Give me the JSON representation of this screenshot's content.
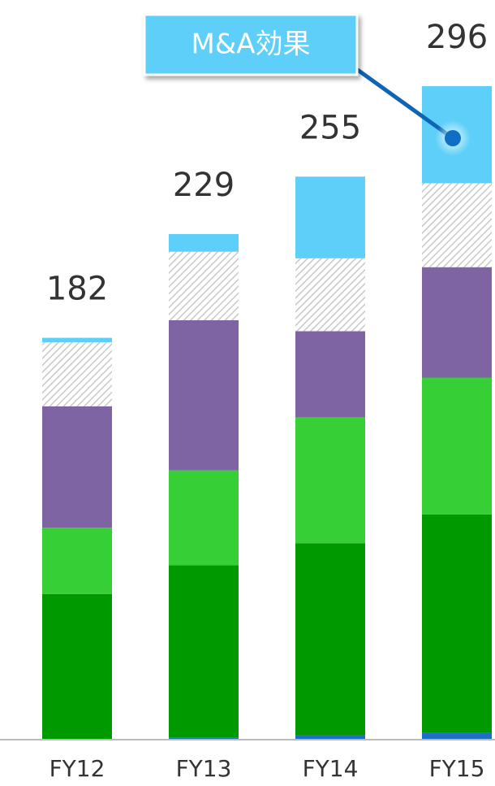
{
  "chart_data": {
    "type": "stacked_bar",
    "categories": [
      "FY12",
      "FY13",
      "FY14",
      "FY15"
    ],
    "totals": [
      182,
      229,
      255,
      296
    ],
    "series": [
      {
        "color": "#1f6fc6",
        "values": [
          0,
          1,
          2,
          3
        ]
      },
      {
        "color": "#009900",
        "values": [
          66,
          78,
          87,
          99
        ]
      },
      {
        "color": "#36cf36",
        "values": [
          30,
          43,
          57,
          62
        ]
      },
      {
        "color": "#7f64a3",
        "values": [
          55,
          68,
          39,
          50
        ]
      },
      {
        "color": "#c8c8c8",
        "pattern": "hatch",
        "values": [
          29,
          31,
          33,
          38
        ]
      },
      {
        "color": "#5dcff8",
        "values": [
          2,
          8,
          37,
          44
        ]
      }
    ],
    "annotation": "M&A効果",
    "ylim": [
      0,
      335
    ]
  }
}
